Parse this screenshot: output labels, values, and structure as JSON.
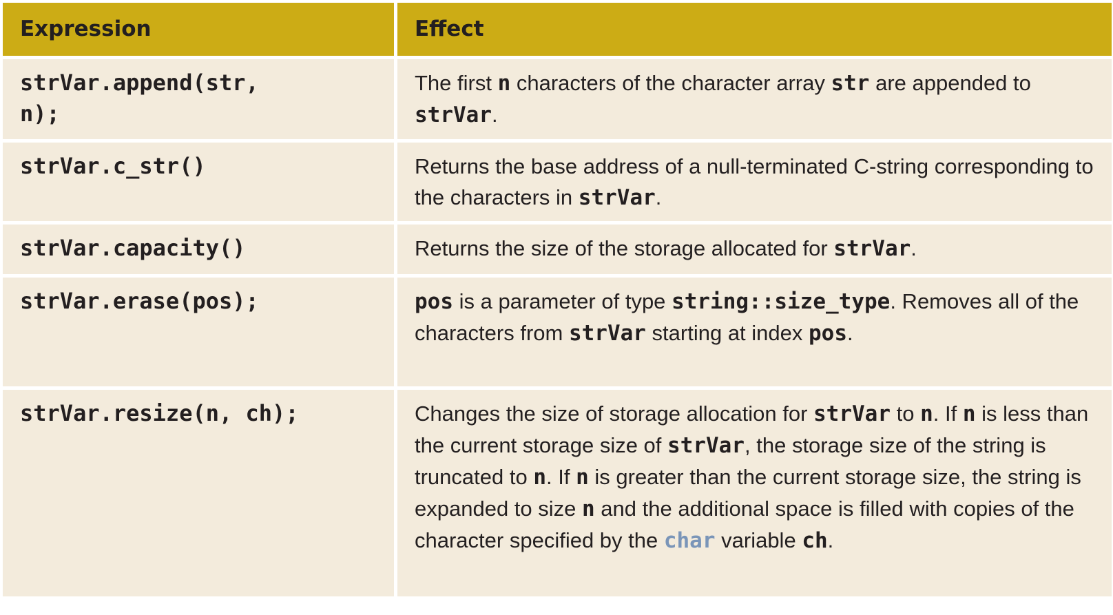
{
  "header": {
    "expression": "Expression",
    "effect": "Effect"
  },
  "colors": {
    "header_bg": "#ccac15",
    "cell_bg": "#f3ebdc",
    "keyword": "#7a95b8"
  },
  "rows": [
    {
      "expression": "strVar.append(str,\nn);",
      "effect": [
        {
          "t": "The first "
        },
        {
          "c": "n"
        },
        {
          "t": " characters of the character array "
        },
        {
          "c": "str"
        },
        {
          "t": " are appended to "
        },
        {
          "c": "strVar"
        },
        {
          "t": "."
        }
      ]
    },
    {
      "expression": "strVar.c_str()",
      "effect": [
        {
          "t": "Returns the base address of a null-terminated C-string corresponding to the characters in "
        },
        {
          "c": "strVar"
        },
        {
          "t": "."
        }
      ]
    },
    {
      "expression": "strVar.capacity()",
      "effect": [
        {
          "t": "Returns the size of the storage allocated for "
        },
        {
          "c": "strVar"
        },
        {
          "t": "."
        }
      ]
    },
    {
      "expression": "strVar.erase(pos);",
      "effect": [
        {
          "c": "pos"
        },
        {
          "t": " is a parameter of type "
        },
        {
          "c": "string::size_type"
        },
        {
          "t": ". Removes all of the characters from "
        },
        {
          "c": "strVar"
        },
        {
          "t": " starting at index "
        },
        {
          "c": "pos"
        },
        {
          "t": "."
        }
      ]
    },
    {
      "expression": "strVar.resize(n, ch);",
      "effect": [
        {
          "t": "Changes the size of storage allocation for "
        },
        {
          "c": "strVar"
        },
        {
          "t": " to "
        },
        {
          "c": "n"
        },
        {
          "t": ". If "
        },
        {
          "c": "n"
        },
        {
          "t": " is less than the current storage size of "
        },
        {
          "c": "strVar"
        },
        {
          "t": ", the storage size of the string is truncated to "
        },
        {
          "c": "n"
        },
        {
          "t": ". If "
        },
        {
          "c": "n"
        },
        {
          "t": " is greater than the current storage size, the string is expanded to size "
        },
        {
          "c": "n"
        },
        {
          "t": " and the additional space is filled with copies of the character specified by the "
        },
        {
          "k": "char"
        },
        {
          "t": " variable "
        },
        {
          "c": "ch"
        },
        {
          "t": "."
        }
      ]
    }
  ]
}
